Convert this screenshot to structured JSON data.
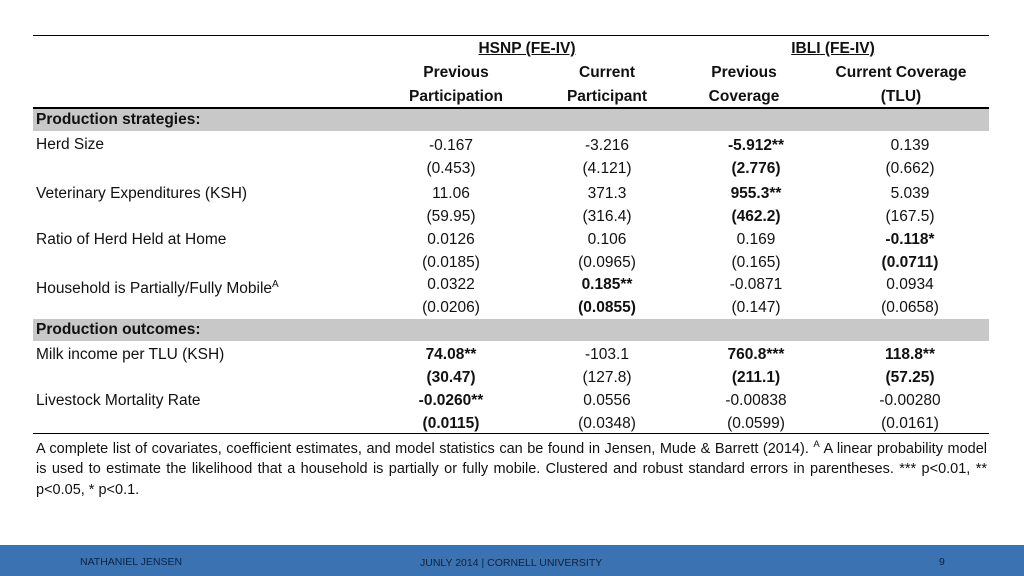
{
  "table": {
    "group_headers": {
      "hsnp": "HSNP (FE-IV)",
      "ibli": "IBLI (FE-IV)"
    },
    "col_headers_line1": [
      "Previous",
      "Current",
      "Previous",
      "Current Coverage"
    ],
    "col_headers_line2": [
      "Participation",
      "Participant",
      "Coverage",
      "(TLU)"
    ],
    "sections": {
      "production_strategies": "Production strategies:",
      "production_outcomes": "Production outcomes:"
    },
    "rows": [
      {
        "label": "Herd Size",
        "sup": "",
        "est": [
          "-0.167",
          "-3.216",
          "-5.912**",
          "0.139"
        ],
        "se": [
          "(0.453)",
          "(4.121)",
          "(2.776)",
          "(0.662)"
        ],
        "bold": [
          false,
          false,
          true,
          false
        ]
      },
      {
        "label": "Veterinary Expenditures (KSH)",
        "sup": "",
        "est": [
          "11.06",
          "371.3",
          "955.3**",
          "5.039"
        ],
        "se": [
          "(59.95)",
          "(316.4)",
          "(462.2)",
          "(167.5)"
        ],
        "bold": [
          false,
          false,
          true,
          false
        ]
      },
      {
        "label": "Ratio of Herd Held at Home",
        "sup": "",
        "est": [
          "0.0126",
          "0.106",
          "0.169",
          "-0.118*"
        ],
        "se": [
          "(0.0185)",
          "(0.0965)",
          "(0.165)",
          "(0.0711)"
        ],
        "bold": [
          false,
          false,
          false,
          true
        ]
      },
      {
        "label": "Household is Partially/Fully Mobile",
        "sup": "A",
        "est": [
          "0.0322",
          "0.185**",
          "-0.0871",
          "0.0934"
        ],
        "se": [
          "(0.0206)",
          "(0.0855)",
          "(0.147)",
          "(0.0658)"
        ],
        "bold": [
          false,
          true,
          false,
          false
        ]
      },
      {
        "label": "Milk income per TLU (KSH)",
        "sup": "",
        "est": [
          "74.08**",
          "-103.1",
          "760.8***",
          "118.8**"
        ],
        "se": [
          "(30.47)",
          "(127.8)",
          "(211.1)",
          "(57.25)"
        ],
        "bold": [
          true,
          false,
          true,
          true
        ]
      },
      {
        "label": "Livestock Mortality Rate",
        "sup": "",
        "est": [
          "-0.0260**",
          "0.0556",
          "-0.00838",
          "-0.00280"
        ],
        "se": [
          "(0.0115)",
          "(0.0348)",
          "(0.0599)",
          "(0.0161)"
        ],
        "bold": [
          true,
          false,
          false,
          false
        ]
      }
    ],
    "footnote_part1": "A complete list of covariates, coefficient estimates, and model statistics can be found in Jensen, Mude & Barrett (2014). ",
    "footnote_sup": "A",
    "footnote_part2": " A linear probability model is used to estimate the likelihood that a household is partially or fully mobile. Clustered and robust standard errors in parentheses. *** p<0.01, ** p<0.05, * p<0.1."
  },
  "footer": {
    "author": "NATHANIEL JENSEN",
    "center": "JUNLY 2014 | CORNELL UNIVERSITY",
    "page": "9"
  },
  "colors": {
    "band": "#c8c8c8",
    "footer": "#3a72b2"
  }
}
